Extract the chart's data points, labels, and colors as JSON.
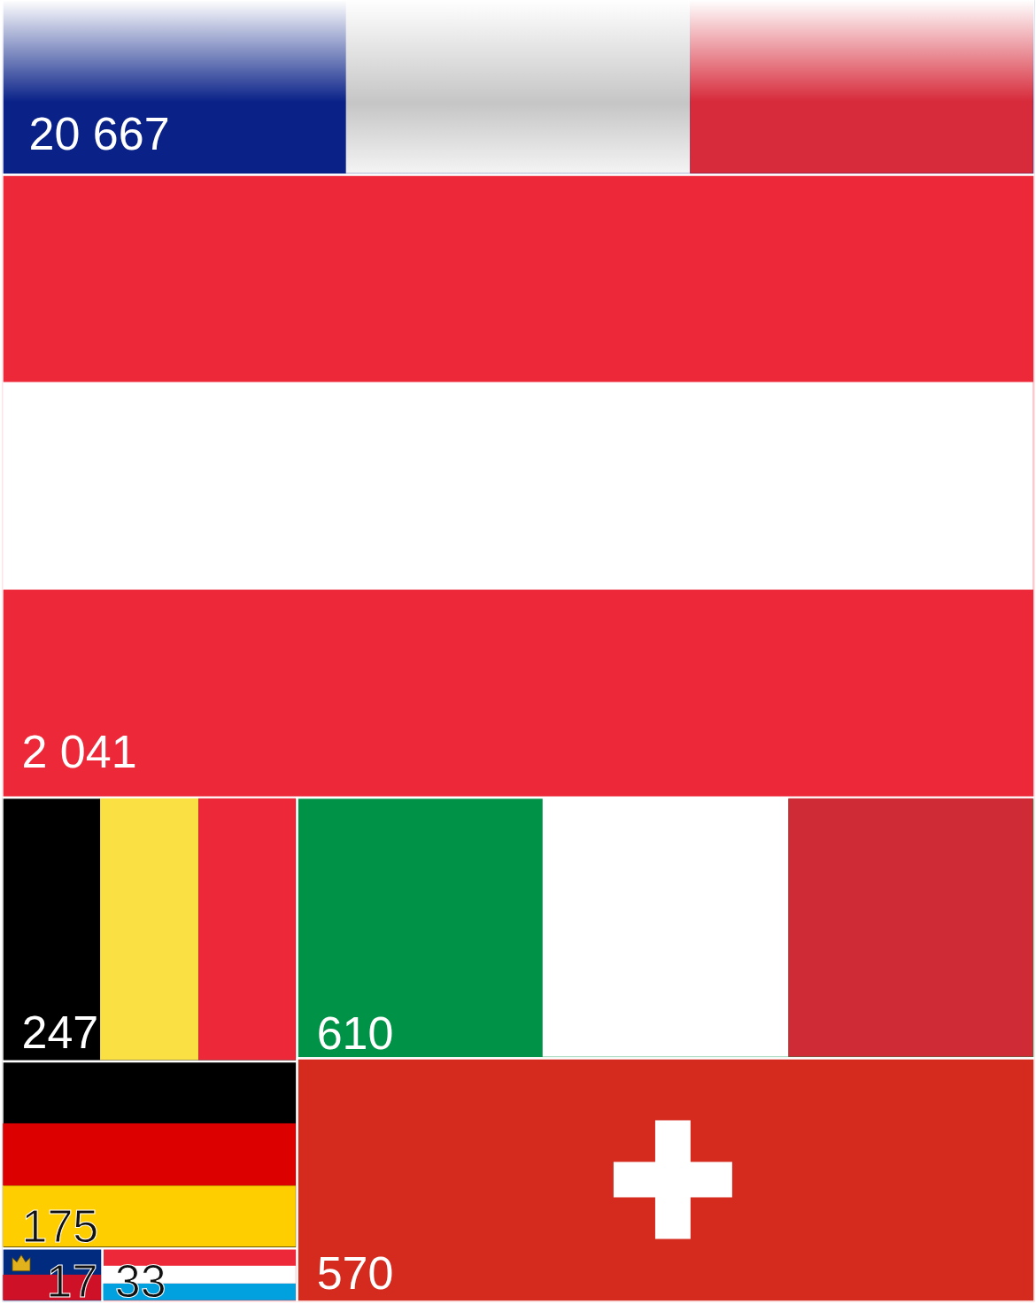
{
  "chart_data": {
    "type": "other",
    "categories": [
      null,
      null,
      null,
      null,
      null,
      null,
      null,
      null
    ],
    "values": [
      20667,
      2041,
      247,
      610,
      175,
      17,
      33,
      570
    ],
    "value_labels": [
      "20 667",
      "2 041",
      "247",
      "610",
      "175",
      "17",
      "33",
      "570"
    ],
    "colors": [
      "#0a2288",
      "#ed2939",
      "#000000",
      "#009246",
      "#000000",
      "#002b7f",
      "#ed2939",
      "#d52b1e"
    ]
  }
}
